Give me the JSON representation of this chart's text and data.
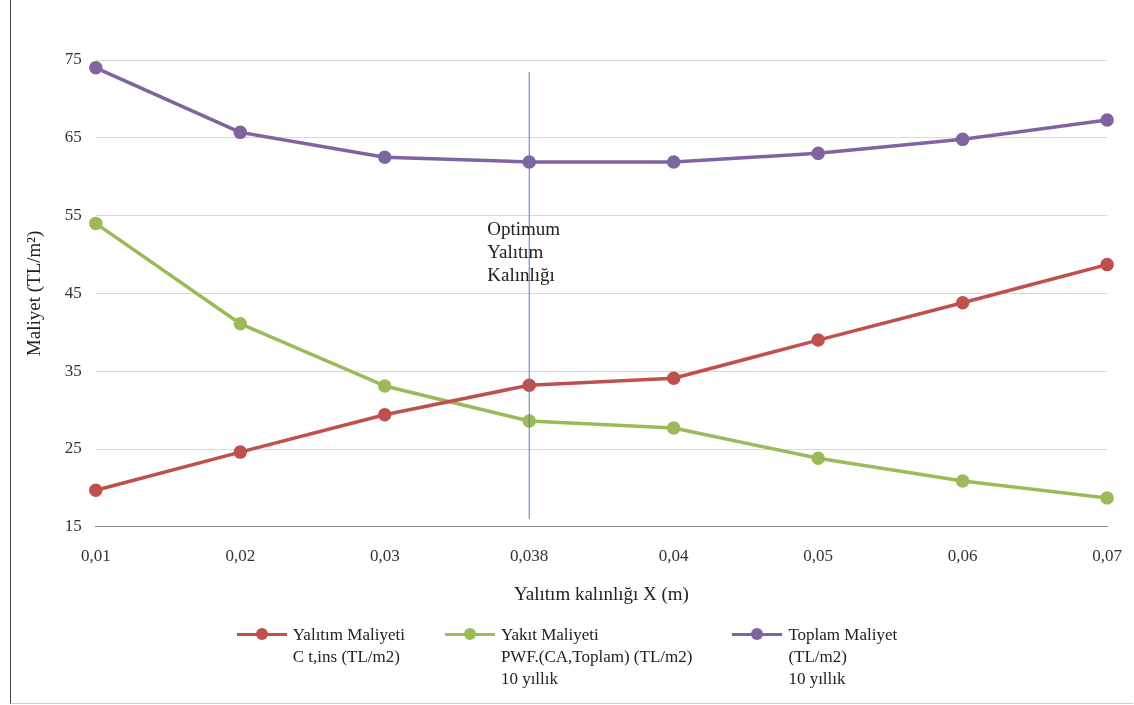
{
  "chart_data": {
    "type": "line",
    "xlabel": "Yalıtım kalınlığı X (m)",
    "ylabel": "Maliyet (TL/m²)",
    "categories": [
      "0,01",
      "0,02",
      "0,03",
      "0,038",
      "0,04",
      "0,05",
      "0,06",
      "0,07"
    ],
    "series": [
      {
        "name": "Yalıtım Maliyeti\nC t,ins (TL/m2)",
        "color": "#c0504d",
        "values": [
          19.7,
          24.6,
          29.4,
          33.2,
          34.1,
          39.0,
          43.8,
          48.7
        ]
      },
      {
        "name": "Yakıt  Maliyeti\nPWF.(CA,Toplam) (TL/m2)\n10 yıllık",
        "color": "#9bbb59",
        "values": [
          54.0,
          41.1,
          33.1,
          28.6,
          27.7,
          23.8,
          20.9,
          18.7
        ]
      },
      {
        "name": "Toplam Maliyet\n(TL/m2)\n10 yıllık",
        "color": "#8064a2",
        "values": [
          74.0,
          65.7,
          62.5,
          61.9,
          61.9,
          63.0,
          64.8,
          67.3
        ]
      }
    ],
    "ylim": [
      15,
      75
    ],
    "yticks": [
      15,
      25,
      35,
      45,
      55,
      65,
      75
    ],
    "grid": "y",
    "legend": "bottom",
    "marker": "circle",
    "line_style": "solid",
    "ref_lines": [
      {
        "axis": "x",
        "value": "0,038",
        "label": "Optimum\nYalıtım\nKalınlığı",
        "color": "#4f81bd"
      }
    ]
  }
}
